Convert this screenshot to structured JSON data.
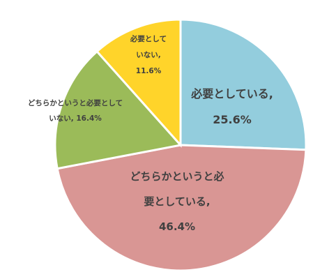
{
  "chart_data": {
    "type": "pie",
    "start_angle_deg": 0,
    "direction": "clockwise",
    "slices": [
      {
        "label_lines": [
          "必要としている,",
          "25.6%"
        ],
        "value": 25.6,
        "color": "#93CDDD"
      },
      {
        "label_lines": [
          "どちらかというと必",
          "要としている,",
          "46.4%"
        ],
        "value": 46.4,
        "color": "#D99694"
      },
      {
        "label_lines": [
          "どちらかというと必要として",
          "いない, 16.4%"
        ],
        "value": 16.4,
        "color": "#9BBB59"
      },
      {
        "label_lines": [
          "必要として",
          "いない,",
          "11.6%"
        ],
        "value": 11.6,
        "color": "#FFD42A"
      }
    ],
    "title": "",
    "legend": "none"
  }
}
